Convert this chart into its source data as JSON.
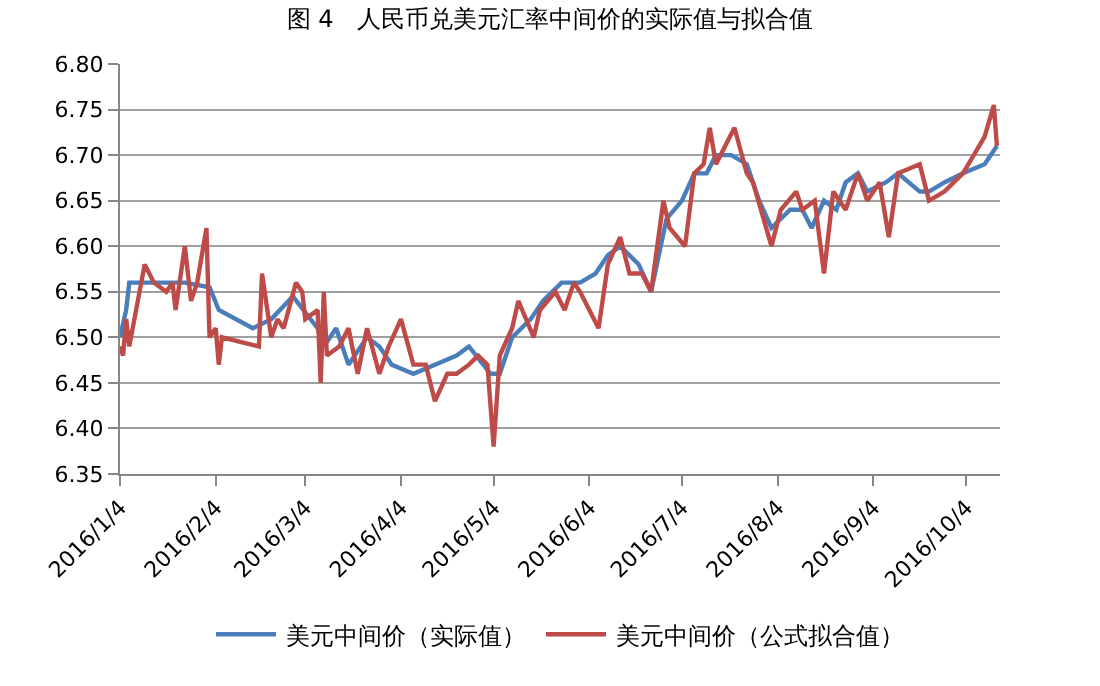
{
  "chart_data": {
    "type": "line",
    "title": "图 4　人民币兑美元汇率中间价的实际值与拟合值",
    "x": [
      "2016-01-04",
      "2016-01-06",
      "2016-01-07",
      "2016-01-15",
      "2016-01-25",
      "2016-02-02",
      "2016-02-05",
      "2016-02-16",
      "2016-02-22",
      "2016-02-29",
      "2016-03-08",
      "2016-03-10",
      "2016-03-14",
      "2016-03-18",
      "2016-03-24",
      "2016-03-28",
      "2016-04-01",
      "2016-04-08",
      "2016-04-15",
      "2016-04-22",
      "2016-04-26",
      "2016-05-03",
      "2016-05-06",
      "2016-05-10",
      "2016-05-16",
      "2016-05-20",
      "2016-05-26",
      "2016-06-01",
      "2016-06-06",
      "2016-06-10",
      "2016-06-14",
      "2016-06-20",
      "2016-06-24",
      "2016-06-29",
      "2016-07-04",
      "2016-07-08",
      "2016-07-12",
      "2016-07-15",
      "2016-07-20",
      "2016-07-25",
      "2016-07-29",
      "2016-08-02",
      "2016-08-08",
      "2016-08-12",
      "2016-08-15",
      "2016-08-19",
      "2016-08-23",
      "2016-08-26",
      "2016-08-30",
      "2016-09-02",
      "2016-09-08",
      "2016-09-12",
      "2016-09-19",
      "2016-09-22",
      "2016-09-27",
      "2016-10-03",
      "2016-10-10",
      "2016-10-14"
    ],
    "series": [
      {
        "name": "美元中间价（实际值）",
        "color": "#4a7ebb",
        "values": [
          6.5,
          6.53,
          6.56,
          6.56,
          6.56,
          6.555,
          6.53,
          6.51,
          6.52,
          6.545,
          6.51,
          6.49,
          6.51,
          6.47,
          6.5,
          6.49,
          6.47,
          6.46,
          6.47,
          6.48,
          6.49,
          6.46,
          6.46,
          6.5,
          6.52,
          6.54,
          6.56,
          6.56,
          6.57,
          6.59,
          6.6,
          6.58,
          6.55,
          6.63,
          6.65,
          6.68,
          6.68,
          6.7,
          6.7,
          6.69,
          6.65,
          6.62,
          6.64,
          6.64,
          6.62,
          6.65,
          6.64,
          6.67,
          6.68,
          6.66,
          6.67,
          6.68,
          6.66,
          6.66,
          6.67,
          6.68,
          6.69,
          6.71
        ]
      },
      {
        "name": "美元中间价（公式拟合值）",
        "color": "#be4b48",
        "x": [
          "2016-01-04",
          "2016-01-05",
          "2016-01-06",
          "2016-01-07",
          "2016-01-12",
          "2016-01-15",
          "2016-01-19",
          "2016-01-21",
          "2016-01-22",
          "2016-01-25",
          "2016-01-27",
          "2016-01-29",
          "2016-02-01",
          "2016-02-02",
          "2016-02-04",
          "2016-02-05",
          "2016-02-06",
          "2016-02-18",
          "2016-02-19",
          "2016-02-22",
          "2016-02-24",
          "2016-02-26",
          "2016-03-01",
          "2016-03-03",
          "2016-03-04",
          "2016-03-08",
          "2016-03-09",
          "2016-03-10",
          "2016-03-11",
          "2016-03-15",
          "2016-03-18",
          "2016-03-21",
          "2016-03-24",
          "2016-03-28",
          "2016-03-31",
          "2016-04-04",
          "2016-04-08",
          "2016-04-12",
          "2016-04-15",
          "2016-04-19",
          "2016-04-22",
          "2016-04-26",
          "2016-04-29",
          "2016-05-02",
          "2016-05-04",
          "2016-05-06",
          "2016-05-10",
          "2016-05-12",
          "2016-05-17",
          "2016-05-19",
          "2016-05-24",
          "2016-05-27",
          "2016-05-30",
          "2016-06-01",
          "2016-06-07",
          "2016-06-10",
          "2016-06-14",
          "2016-06-17",
          "2016-06-21",
          "2016-06-24",
          "2016-06-28",
          "2016-06-30",
          "2016-07-05",
          "2016-07-08",
          "2016-07-11",
          "2016-07-13",
          "2016-07-15",
          "2016-07-18",
          "2016-07-21",
          "2016-07-25",
          "2016-07-27",
          "2016-08-02",
          "2016-08-05",
          "2016-08-10",
          "2016-08-12",
          "2016-08-16",
          "2016-08-19",
          "2016-08-22",
          "2016-08-26",
          "2016-08-30",
          "2016-09-02",
          "2016-09-06",
          "2016-09-09",
          "2016-09-12",
          "2016-09-19",
          "2016-09-22",
          "2016-09-27",
          "2016-10-03",
          "2016-10-10",
          "2016-10-13",
          "2016-10-14"
        ],
        "values": [
          6.49,
          6.48,
          6.52,
          6.49,
          6.58,
          6.56,
          6.55,
          6.56,
          6.53,
          6.6,
          6.54,
          6.56,
          6.62,
          6.5,
          6.51,
          6.47,
          6.5,
          6.49,
          6.57,
          6.5,
          6.52,
          6.51,
          6.56,
          6.55,
          6.52,
          6.53,
          6.45,
          6.55,
          6.48,
          6.49,
          6.51,
          6.46,
          6.51,
          6.46,
          6.49,
          6.52,
          6.47,
          6.47,
          6.43,
          6.46,
          6.46,
          6.47,
          6.48,
          6.47,
          6.38,
          6.48,
          6.51,
          6.54,
          6.5,
          6.53,
          6.55,
          6.53,
          6.56,
          6.55,
          6.51,
          6.58,
          6.61,
          6.57,
          6.57,
          6.55,
          6.65,
          6.62,
          6.6,
          6.68,
          6.69,
          6.73,
          6.69,
          6.71,
          6.73,
          6.68,
          6.67,
          6.6,
          6.64,
          6.66,
          6.64,
          6.65,
          6.57,
          6.66,
          6.64,
          6.68,
          6.65,
          6.67,
          6.61,
          6.68,
          6.69,
          6.65,
          6.66,
          6.68,
          6.72,
          6.755,
          6.71
        ]
      }
    ],
    "xlim": [
      "2016-01-04",
      "2016-10-15"
    ],
    "xticks": [
      {
        "value": "2016-01-04",
        "label": "2016/1/4"
      },
      {
        "value": "2016-02-04",
        "label": "2016/2/4"
      },
      {
        "value": "2016-03-04",
        "label": "2016/3/4"
      },
      {
        "value": "2016-04-04",
        "label": "2016/4/4"
      },
      {
        "value": "2016-05-04",
        "label": "2016/5/4"
      },
      {
        "value": "2016-06-04",
        "label": "2016/6/4"
      },
      {
        "value": "2016-07-04",
        "label": "2016/7/4"
      },
      {
        "value": "2016-08-04",
        "label": "2016/8/4"
      },
      {
        "value": "2016-09-04",
        "label": "2016/9/4"
      },
      {
        "value": "2016-10-04",
        "label": "2016/10/4"
      }
    ],
    "ylim": [
      6.35,
      6.8
    ],
    "yticks": [
      {
        "value": 6.35,
        "label": "6.35"
      },
      {
        "value": 6.4,
        "label": "6.40"
      },
      {
        "value": 6.45,
        "label": "6.45"
      },
      {
        "value": 6.5,
        "label": "6.50"
      },
      {
        "value": 6.55,
        "label": "6.55"
      },
      {
        "value": 6.6,
        "label": "6.60"
      },
      {
        "value": 6.65,
        "label": "6.65"
      },
      {
        "value": 6.7,
        "label": "6.70"
      },
      {
        "value": 6.75,
        "label": "6.75"
      },
      {
        "value": 6.8,
        "label": "6.80"
      }
    ],
    "grid": "y",
    "legend": "bottom",
    "marker": "none",
    "line_style": "solid"
  }
}
